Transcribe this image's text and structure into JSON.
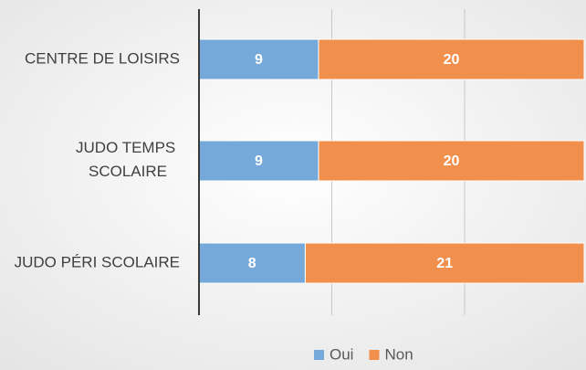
{
  "chart_data": {
    "type": "stacked_barh",
    "categories": [
      "CENTRE DE LOISIRS",
      "JUDO TEMPS SCOLAIRE",
      "JUDO PÉRI SCOLAIRE"
    ],
    "series": [
      {
        "name": "Oui",
        "color": "#75a9d9",
        "values": [
          9,
          9,
          8
        ]
      },
      {
        "name": "Non",
        "color": "#f0904c",
        "values": [
          20,
          20,
          21
        ]
      }
    ],
    "xlim": [
      0,
      29
    ],
    "xticks": [
      0,
      10,
      20
    ],
    "grid": true,
    "legend": "bottom"
  }
}
